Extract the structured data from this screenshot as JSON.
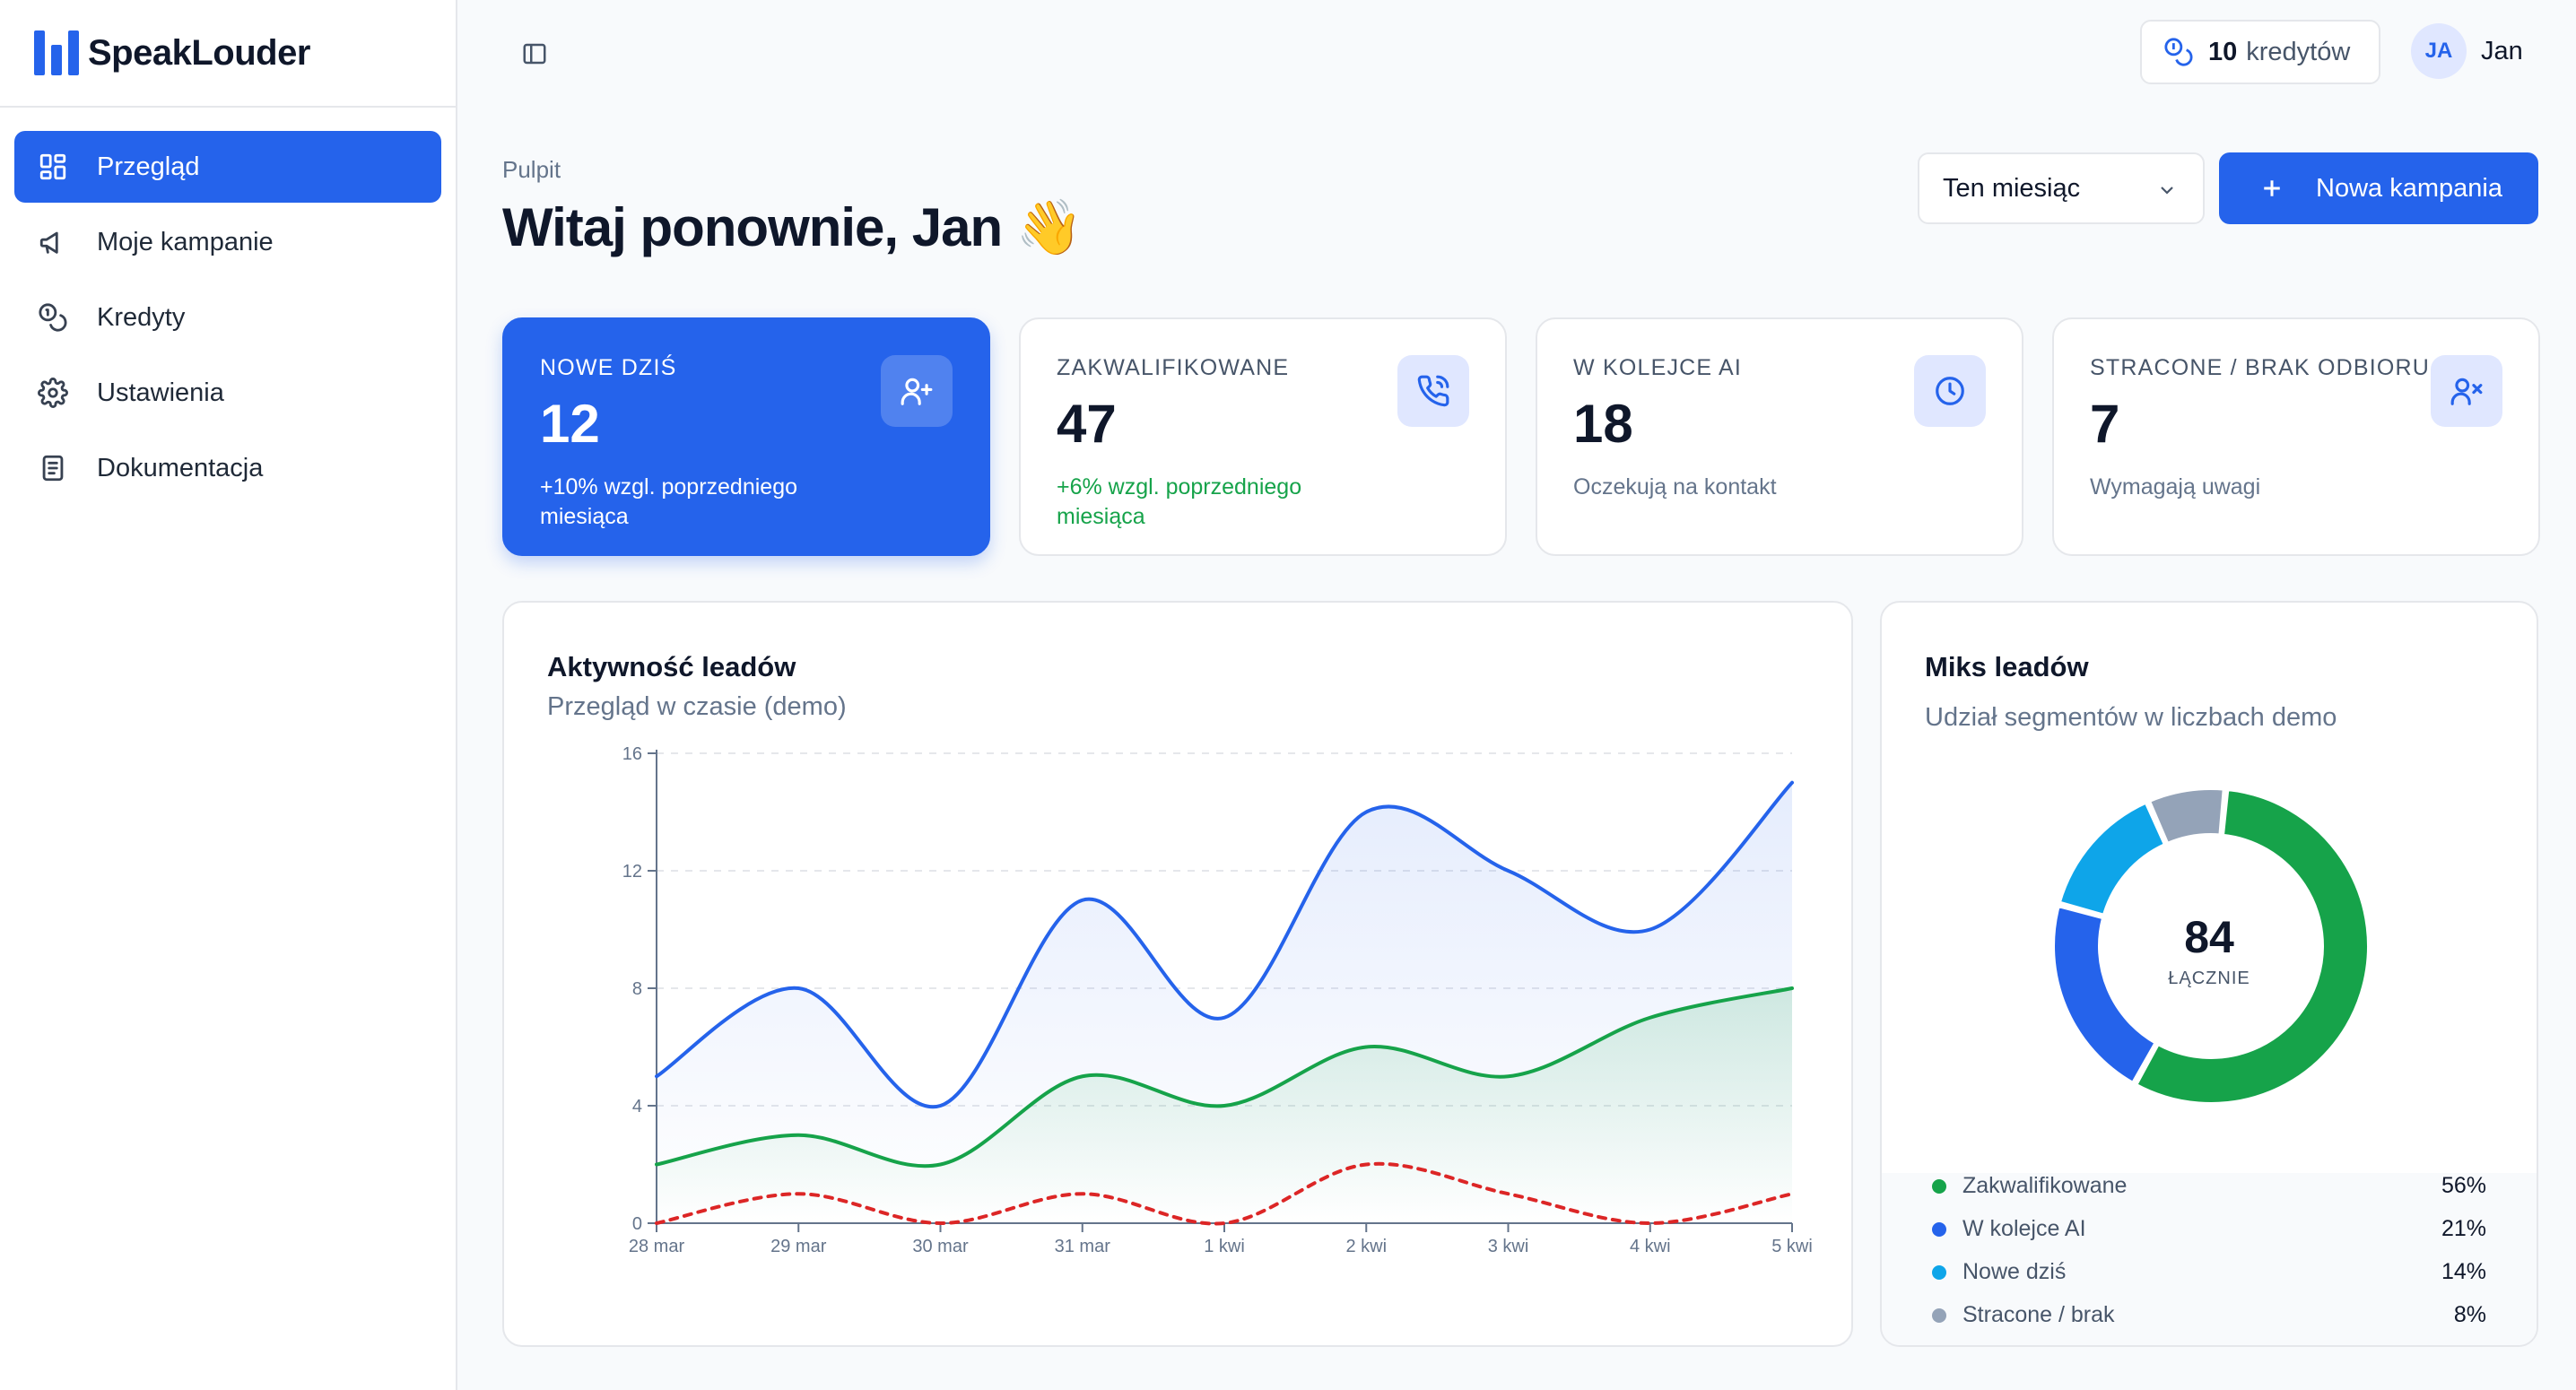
{
  "brand": {
    "name": "SpeakLouder"
  },
  "sidebar": {
    "items": [
      {
        "label": "Przegląd",
        "icon": "dashboard-icon",
        "active": true
      },
      {
        "label": "Moje kampanie",
        "icon": "megaphone-icon"
      },
      {
        "label": "Kredyty",
        "icon": "coins-icon"
      },
      {
        "label": "Ustawienia",
        "icon": "gear-icon"
      },
      {
        "label": "Dokumentacja",
        "icon": "document-icon"
      }
    ]
  },
  "topbar": {
    "credits_value": "10",
    "credits_label": "kredytów",
    "user_initials": "JA",
    "user_name": "Jan"
  },
  "header": {
    "breadcrumb": "Pulpit",
    "title": "Witaj ponownie, Jan 👋",
    "period_select": "Ten miesiąc",
    "new_campaign_label": "Nowa kampania"
  },
  "stats": [
    {
      "label": "NOWE DZIŚ",
      "value": "12",
      "note": "+10% wzgl. poprzedniego miesiąca",
      "icon": "user-plus-icon"
    },
    {
      "label": "ZAKWALIFIKOWANE",
      "value": "47",
      "note": "+6% wzgl. poprzedniego miesiąca",
      "icon": "phone-call-icon"
    },
    {
      "label": "W KOLEJCE AI",
      "value": "18",
      "note": "Oczekują na kontakt",
      "icon": "clock-icon"
    },
    {
      "label": "STRACONE / BRAK ODBIORU",
      "value": "7",
      "note": "Wymagają uwagi",
      "icon": "user-x-icon"
    }
  ],
  "colors": {
    "accent": "#2563eb",
    "green": "#16a34a",
    "red": "#dc2626",
    "sky": "#0ea5e9",
    "gray": "#94a3b8"
  },
  "chart_data": [
    {
      "type": "line",
      "title": "Aktywność leadów",
      "subtitle": "Przegląd w czasie (demo)",
      "x": [
        "28 mar",
        "29 mar",
        "30 mar",
        "31 mar",
        "1 kwi",
        "2 kwi",
        "3 kwi",
        "4 kwi",
        "5 kwi"
      ],
      "ylim": [
        0,
        16
      ],
      "yticks": [
        0,
        4,
        8,
        12,
        16
      ],
      "grid": true,
      "series": [
        {
          "values": [
            5,
            8,
            4,
            11,
            7,
            14,
            12,
            10,
            15
          ],
          "color": "#2563eb",
          "style": "solid",
          "area": true
        },
        {
          "values": [
            2,
            3,
            2,
            5,
            4,
            6,
            5,
            7,
            8
          ],
          "color": "#16a34a",
          "style": "solid",
          "area": true
        },
        {
          "values": [
            0,
            1,
            0,
            1,
            0,
            2,
            1,
            0,
            1
          ],
          "color": "#dc2626",
          "style": "dashed",
          "area": false
        }
      ]
    },
    {
      "type": "pie",
      "title": "Miks leadów",
      "subtitle": "Udział segmentów w liczbach demo",
      "total": "84",
      "total_label": "ŁĄCZNIE",
      "slices": [
        {
          "label": "Zakwalifikowane",
          "value": 56,
          "pct": "56%",
          "color": "#16a34a"
        },
        {
          "label": "W kolejce AI",
          "value": 21,
          "pct": "21%",
          "color": "#2563eb"
        },
        {
          "label": "Nowe dziś",
          "value": 14,
          "pct": "14%",
          "color": "#0ea5e9"
        },
        {
          "label": "Stracone / brak",
          "value": 8,
          "pct": "8%",
          "color": "#94a3b8"
        }
      ]
    }
  ]
}
